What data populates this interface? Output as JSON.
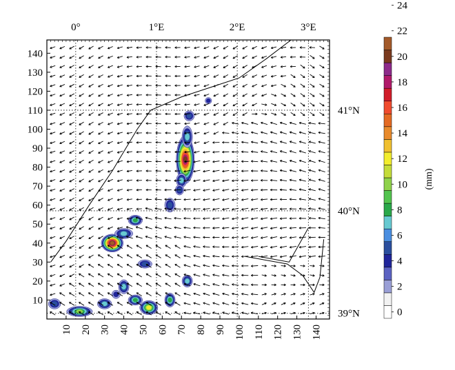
{
  "map": {
    "x_ticks": [
      "10",
      "20",
      "30",
      "40",
      "50",
      "60",
      "70",
      "80",
      "90",
      "100",
      "110",
      "120",
      "130",
      "140"
    ],
    "y_ticks": [
      "10",
      "20",
      "30",
      "40",
      "50",
      "60",
      "70",
      "80",
      "90",
      "100",
      "110",
      "120",
      "130",
      "140"
    ],
    "grid_extent": [
      0,
      147
    ],
    "lon_labels": [
      "0°",
      "1°E",
      "2°E",
      "3°E"
    ],
    "lat_labels": [
      "41°N",
      "40°N",
      "39°N"
    ],
    "graticule_lon_grid": [
      15,
      57,
      99,
      136
    ],
    "graticule_lat_grid": [
      110,
      57,
      3
    ],
    "coastline": [
      [
        2,
        30
      ],
      [
        10,
        41
      ],
      [
        22,
        60
      ],
      [
        34,
        78
      ],
      [
        47,
        100
      ],
      [
        54,
        110
      ],
      [
        70,
        117
      ],
      [
        85,
        122
      ],
      [
        100,
        127
      ],
      [
        114,
        137
      ],
      [
        127,
        147
      ]
    ],
    "coastline_south": [
      [
        103,
        33
      ],
      [
        125,
        29
      ],
      [
        133,
        23
      ],
      [
        139,
        14
      ],
      [
        142,
        22
      ],
      [
        144,
        42
      ]
    ],
    "coastline_bay": [
      [
        110,
        33
      ],
      [
        126,
        30
      ],
      [
        136,
        48
      ]
    ],
    "precip_cells": [
      {
        "x": 72,
        "y": 84,
        "rx": 4,
        "ry": 12,
        "peak": 24
      },
      {
        "x": 73,
        "y": 96,
        "rx": 2,
        "ry": 5,
        "peak": 8
      },
      {
        "x": 74,
        "y": 107,
        "rx": 2,
        "ry": 2,
        "peak": 6
      },
      {
        "x": 70,
        "y": 73,
        "rx": 2,
        "ry": 3,
        "peak": 8
      },
      {
        "x": 69,
        "y": 68,
        "rx": 1.5,
        "ry": 2,
        "peak": 6
      },
      {
        "x": 64,
        "y": 60,
        "rx": 2,
        "ry": 3,
        "peak": 6
      },
      {
        "x": 34,
        "y": 40,
        "rx": 5,
        "ry": 4,
        "peak": 26
      },
      {
        "x": 40,
        "y": 45,
        "rx": 4,
        "ry": 2,
        "peak": 8
      },
      {
        "x": 46,
        "y": 52,
        "rx": 3,
        "ry": 2,
        "peak": 10
      },
      {
        "x": 51,
        "y": 29,
        "rx": 3,
        "ry": 1.5,
        "peak": 6
      },
      {
        "x": 40,
        "y": 17,
        "rx": 2,
        "ry": 3,
        "peak": 8
      },
      {
        "x": 46,
        "y": 10,
        "rx": 3,
        "ry": 2,
        "peak": 10
      },
      {
        "x": 53,
        "y": 6,
        "rx": 4,
        "ry": 3,
        "peak": 14
      },
      {
        "x": 64,
        "y": 10,
        "rx": 2,
        "ry": 3,
        "peak": 10
      },
      {
        "x": 73,
        "y": 20,
        "rx": 2,
        "ry": 2.5,
        "peak": 8
      },
      {
        "x": 17,
        "y": 4,
        "rx": 6,
        "ry": 2,
        "peak": 12
      },
      {
        "x": 30,
        "y": 8,
        "rx": 3,
        "ry": 2,
        "peak": 8
      },
      {
        "x": 4,
        "y": 8,
        "rx": 2.5,
        "ry": 2,
        "peak": 6
      },
      {
        "x": 36,
        "y": 13,
        "rx": 1.5,
        "ry": 1.5,
        "peak": 4
      },
      {
        "x": 84,
        "y": 115,
        "rx": 1,
        "ry": 1,
        "peak": 4
      }
    ]
  },
  "colorbar": {
    "unit_label": "(mm)",
    "levels": [
      "0",
      "2",
      "4",
      "6",
      "8",
      "10",
      "12",
      "14",
      "16",
      "18",
      "20",
      "22",
      "24"
    ],
    "colors": [
      "#ffffff",
      "#f2f2f2",
      "#9a9fd6",
      "#5c63c2",
      "#20259a",
      "#2b4f9e",
      "#4a8ee0",
      "#67c9d1",
      "#2aa84a",
      "#53c44f",
      "#8fd24b",
      "#c4dc3a",
      "#f2ed2e",
      "#f0c030",
      "#e88a2c",
      "#e46a23",
      "#f04b2e",
      "#d01d2a",
      "#b01a6a",
      "#8d2b8a",
      "#7a3a1e",
      "#a35a2a"
    ]
  },
  "colors": {
    "frame": "#000000",
    "vectors": "#000000",
    "coastline": "#000000"
  }
}
